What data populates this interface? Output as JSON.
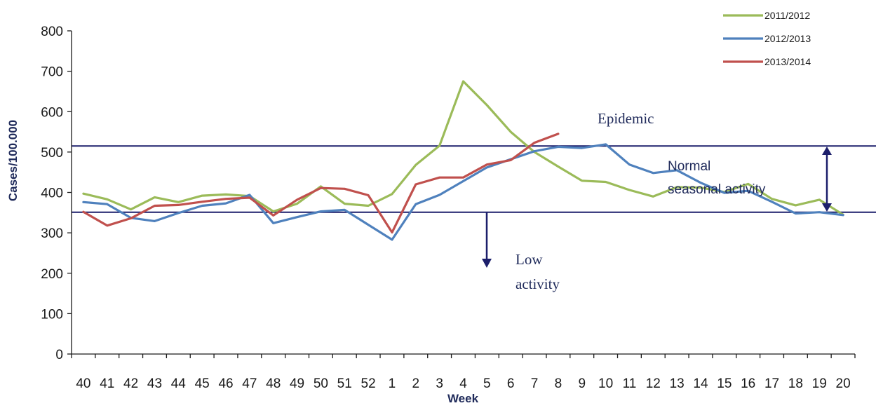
{
  "chart_data": {
    "type": "line",
    "xlabel": "Week",
    "ylabel": "Cases/100.000",
    "ylim": [
      0,
      800
    ],
    "yticks": [
      0,
      100,
      200,
      300,
      400,
      500,
      600,
      700,
      800
    ],
    "categories": [
      "40",
      "41",
      "42",
      "43",
      "44",
      "45",
      "46",
      "47",
      "48",
      "49",
      "50",
      "51",
      "52",
      "1",
      "2",
      "3",
      "4",
      "5",
      "6",
      "7",
      "8",
      "9",
      "10",
      "11",
      "12",
      "13",
      "14",
      "15",
      "16",
      "17",
      "18",
      "19",
      "20"
    ],
    "series": [
      {
        "name": "2011/2012",
        "color": "#9bbb59",
        "values": [
          397,
          383,
          358,
          388,
          376,
          392,
          395,
          391,
          353,
          372,
          415,
          372,
          367,
          396,
          468,
          516,
          675,
          616,
          550,
          500,
          464,
          429,
          426,
          406,
          390,
          413,
          412,
          401,
          421,
          384,
          368,
          382,
          345
        ]
      },
      {
        "name": "2012/2013",
        "color": "#4f81bd",
        "values": [
          376,
          371,
          337,
          329,
          349,
          367,
          373,
          394,
          324,
          339,
          353,
          357,
          320,
          283,
          371,
          394,
          428,
          462,
          482,
          502,
          513,
          510,
          519,
          469,
          448,
          455,
          424,
          399,
          404,
          377,
          348,
          351,
          344
        ]
      },
      {
        "name": "2013/2014",
        "color": "#c0504d",
        "values": [
          352,
          318,
          336,
          367,
          369,
          377,
          384,
          387,
          343,
          382,
          411,
          409,
          393,
          301,
          420,
          437,
          437,
          469,
          480,
          523,
          545,
          null,
          null,
          null,
          null,
          null,
          null,
          null,
          null,
          null,
          null,
          null,
          null
        ]
      }
    ],
    "thresholds": [
      {
        "label": "Epidemic threshold",
        "value": 515,
        "color": "#1c1f6b"
      },
      {
        "label": "Low activity threshold",
        "value": 351,
        "color": "#1c1f6b"
      }
    ],
    "annotations": {
      "epidemic": "Epidemic",
      "normal_line1": "Normal",
      "normal_line2": "seasonal activity",
      "low_line1": "Low",
      "low_line2": "activity"
    },
    "grid": false,
    "legend_position": "top-right"
  }
}
